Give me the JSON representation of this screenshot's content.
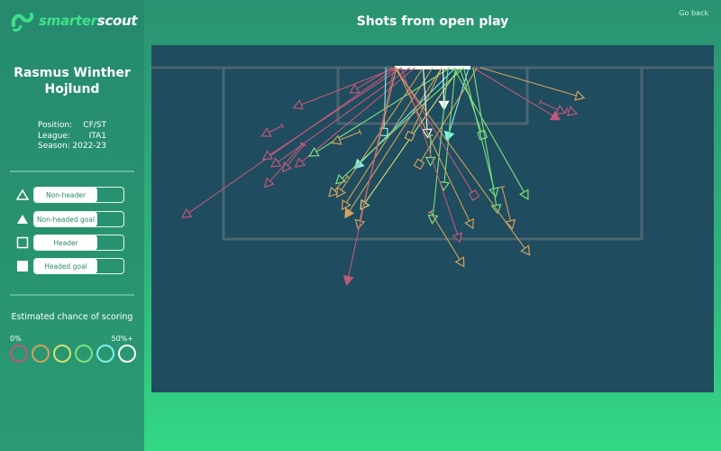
{
  "brand": {
    "prefix": "smarter",
    "suffix": "scout"
  },
  "player": {
    "name_line1": "Rasmus Winther",
    "name_line2": "Hojlund",
    "fields": [
      {
        "label": "Position:",
        "value": "CF/ST"
      },
      {
        "label": "League:",
        "value": "ITA1"
      },
      {
        "label": "Season:",
        "value": "2022-23"
      }
    ]
  },
  "legend": [
    {
      "label": "Non-header",
      "symbol": "triangle-outline",
      "enabled": true
    },
    {
      "label": "Non-headed goal",
      "symbol": "triangle-filled",
      "enabled": true
    },
    {
      "label": "Header",
      "symbol": "square-outline",
      "enabled": true
    },
    {
      "label": "Headed goal",
      "symbol": "square-filled",
      "enabled": true
    }
  ],
  "scoring": {
    "title": "Estimated chance of scoring",
    "min_label": "0%",
    "max_label": "50%+",
    "colors": [
      "#c0587a",
      "#d2a060",
      "#d6e070",
      "#7ee07e",
      "#7ef0ee",
      "#ffffff"
    ]
  },
  "header": {
    "title": "Shots from open play",
    "back_label": "Go back"
  },
  "colors": {
    "pitch": "#1f4c5e",
    "lines": "#4b6572",
    "goal": "#ffffff"
  },
  "chart_data": {
    "type": "scatter",
    "units": "metres (x: lateral from goal centre, y: distance from goal line)",
    "shots": [
      {
        "x": -23.8,
        "y": 14.2,
        "ex": -3.5,
        "ey": 0,
        "type": "non-header",
        "c": 0
      },
      {
        "x": -16.1,
        "y": 6.4,
        "ex": -14.5,
        "ey": 5.6,
        "type": "non-header",
        "c": 0,
        "blocked": true
      },
      {
        "x": -13.0,
        "y": 3.7,
        "ex": -3.5,
        "ey": 0,
        "type": "non-header",
        "c": 0
      },
      {
        "x": -7.6,
        "y": 2.2,
        "ex": -3.9,
        "ey": 0,
        "type": "non-header",
        "c": 0
      },
      {
        "x": -16.0,
        "y": 8.6,
        "ex": -3.0,
        "ey": 0,
        "type": "non-header",
        "c": 0
      },
      {
        "x": -15.2,
        "y": 9.3,
        "ex": -2.2,
        "ey": 0,
        "type": "non-header",
        "c": 0
      },
      {
        "x": -14.2,
        "y": 9.7,
        "ex": -12.4,
        "ey": 7.4,
        "type": "non-header",
        "c": 0,
        "blocked": true
      },
      {
        "x": -12.9,
        "y": 9.3,
        "ex": -1.7,
        "ey": 0,
        "type": "non-header",
        "c": 0
      },
      {
        "x": -11.5,
        "y": 8.3,
        "ex": 1.7,
        "ey": 0,
        "type": "non-header",
        "c": 3
      },
      {
        "x": -9.3,
        "y": 7.1,
        "ex": -7.0,
        "ey": 6.2,
        "type": "non-header",
        "c": 1,
        "blocked": true
      },
      {
        "x": -15.9,
        "y": 11.2,
        "ex": -12.6,
        "ey": 7.4,
        "type": "non-header",
        "c": 0,
        "blocked": true
      },
      {
        "x": -4.7,
        "y": 6.2,
        "ex": -4.5,
        "ey": 0,
        "type": "header",
        "c": 4
      },
      {
        "x": -7.2,
        "y": 9.4,
        "ex": 2.2,
        "ey": 0,
        "type": "non-headed-goal",
        "c": 4
      },
      {
        "x": -9.0,
        "y": 10.9,
        "ex": 3.0,
        "ey": 0,
        "type": "non-header",
        "c": 3
      },
      {
        "x": -9.7,
        "y": 12.1,
        "ex": -8.2,
        "ey": 10.5,
        "type": "non-header",
        "c": 1,
        "blocked": true
      },
      {
        "x": -9.0,
        "y": 12.1,
        "ex": -0.9,
        "ey": 0,
        "type": "non-header",
        "c": 1
      },
      {
        "x": -8.5,
        "y": 13.3,
        "ex": 0,
        "ey": 0,
        "type": "non-header",
        "c": 1
      },
      {
        "x": -8.2,
        "y": 14.1,
        "ex": 0.9,
        "ey": 0,
        "type": "non-headed-goal",
        "c": 1
      },
      {
        "x": -6.7,
        "y": 13.3,
        "ex": 2.6,
        "ey": 0,
        "type": "non-header",
        "c": 2
      },
      {
        "x": -7.1,
        "y": 15.1,
        "ex": -3.5,
        "ey": 0,
        "type": "non-header",
        "c": 1
      },
      {
        "x": -8.2,
        "y": 20.5,
        "ex": -3.7,
        "ey": 0,
        "type": "non-headed-goal",
        "c": 0
      },
      {
        "x": 14.2,
        "y": 2.8,
        "ex": 4.6,
        "ey": 0,
        "type": "non-header",
        "c": 1
      },
      {
        "x": 12.4,
        "y": 4.2,
        "ex": 10.4,
        "ey": 3.3,
        "type": "non-header",
        "c": 0,
        "blocked": true
      },
      {
        "x": 11.9,
        "y": 4.8,
        "ex": 3.9,
        "ey": 0,
        "type": "non-headed-goal",
        "c": 0
      },
      {
        "x": 13.5,
        "y": 4.3,
        "ex": 12.9,
        "ey": 4.1,
        "type": "non-header",
        "c": 0,
        "blocked": true
      },
      {
        "x": 1.1,
        "y": 3.6,
        "ex": 1.0,
        "ey": 0,
        "type": "non-headed-goal",
        "c": 5
      },
      {
        "x": -2.2,
        "y": 6.6,
        "ex": 0.9,
        "ey": 0,
        "type": "header",
        "c": 1
      },
      {
        "x": -0.5,
        "y": 6.3,
        "ex": -0.9,
        "ey": 0,
        "type": "non-header",
        "c": 5
      },
      {
        "x": 1.5,
        "y": 6.6,
        "ex": 3.5,
        "ey": 0,
        "type": "non-headed-goal",
        "c": 4
      },
      {
        "x": 4.8,
        "y": 6.5,
        "ex": 2.6,
        "ey": 0,
        "type": "header",
        "c": 3
      },
      {
        "x": -1.3,
        "y": 9.3,
        "ex": 4.3,
        "ey": 0,
        "type": "header",
        "c": 1
      },
      {
        "x": -0.2,
        "y": 9.0,
        "ex": -0.2,
        "ey": 6.5,
        "type": "non-header",
        "c": 3,
        "blocked": true
      },
      {
        "x": 1.1,
        "y": 11.4,
        "ex": 2.2,
        "ey": 0,
        "type": "non-header",
        "c": 3
      },
      {
        "x": 4.0,
        "y": 12.3,
        "ex": -3.5,
        "ey": 0,
        "type": "header",
        "c": 0
      },
      {
        "x": 6.0,
        "y": 12.0,
        "ex": 3.0,
        "ey": 0,
        "type": "non-header",
        "c": 3
      },
      {
        "x": 9.0,
        "y": 12.3,
        "ex": 2.0,
        "ey": 0,
        "type": "non-header",
        "c": 3
      },
      {
        "x": 6.2,
        "y": 13.6,
        "ex": 3.9,
        "ey": 0,
        "type": "non-header",
        "c": 3
      },
      {
        "x": 0,
        "y": 14.6,
        "ex": 1.5,
        "ey": 0,
        "type": "non-header",
        "c": 3
      },
      {
        "x": 3.7,
        "y": 15.1,
        "ex": -3.5,
        "ey": 0,
        "type": "non-header",
        "c": 1
      },
      {
        "x": 7.6,
        "y": 15.1,
        "ex": 6.7,
        "ey": 11.5,
        "type": "non-header",
        "c": 1,
        "blocked": true
      },
      {
        "x": 2.5,
        "y": 16.4,
        "ex": -3.0,
        "ey": 0,
        "type": "non-header",
        "c": 0
      },
      {
        "x": 9.1,
        "y": 17.7,
        "ex": -3.7,
        "ey": 0,
        "type": "non-header",
        "c": 1
      },
      {
        "x": 2.8,
        "y": 18.8,
        "ex": -0.2,
        "ey": 13.9,
        "type": "non-header",
        "c": 1,
        "blocked": true
      }
    ]
  }
}
